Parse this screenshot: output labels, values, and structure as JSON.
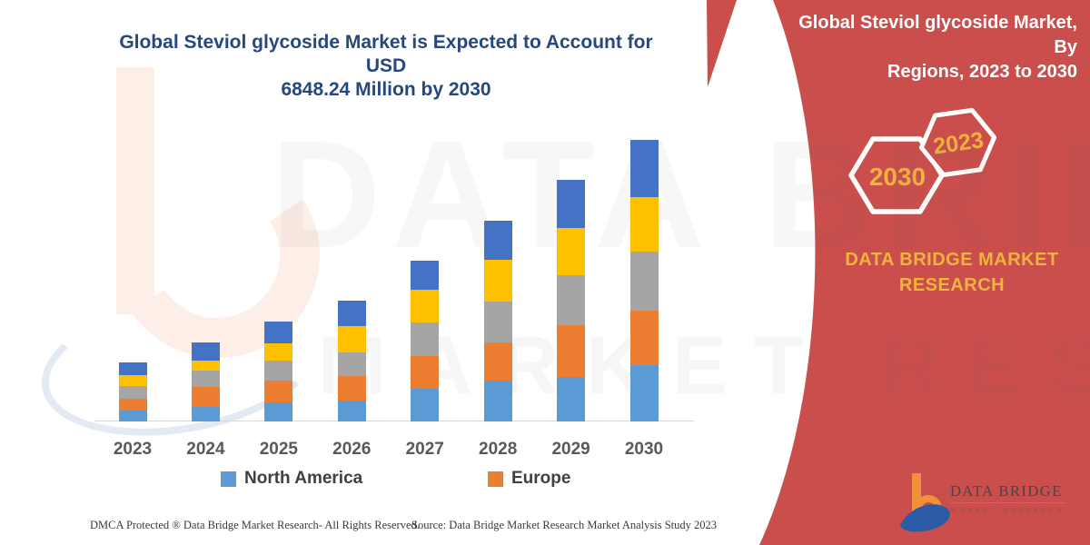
{
  "page": {
    "background": "#ffffff"
  },
  "header": {
    "title_line1": "Global Steviol glycoside Market is Expected to Account for USD",
    "title_line2": "6848.24 Million by 2030",
    "color": "#27477d"
  },
  "watermark": {
    "line1": "DATA BRIDGE",
    "line2": "MARKET RESEARCH"
  },
  "chart_data": {
    "type": "bar",
    "stacked": true,
    "title": "Global Steviol glycoside Market is Expected to Account for USD 6848.24 Million by 2030",
    "categories": [
      "2023",
      "2024",
      "2025",
      "2026",
      "2027",
      "2028",
      "2029",
      "2030"
    ],
    "series": [
      {
        "name": "North America",
        "color": "#5b9bd5",
        "values": [
          265,
          353,
          464,
          508,
          795,
          994,
          1082,
          1370
        ]
      },
      {
        "name": "Europe",
        "color": "#ed7d31",
        "values": [
          287,
          486,
          530,
          596,
          795,
          928,
          1259,
          1325
        ]
      },
      {
        "name": "(unlabeled series 3)",
        "color": "#a5a5a5",
        "values": [
          309,
          398,
          486,
          574,
          817,
          994,
          1215,
          1436
        ]
      },
      {
        "name": "(unlabeled series 4)",
        "color": "#ffc000",
        "values": [
          265,
          243,
          420,
          641,
          795,
          1016,
          1149,
          1325
        ]
      },
      {
        "name": "(unlabeled series 5)",
        "color": "#4472c4",
        "values": [
          309,
          442,
          530,
          619,
          707,
          950,
          1171,
          1392
        ]
      }
    ],
    "totals_estimated": [
      1435,
      1922,
      2430,
      2938,
      3909,
      4882,
      5876,
      6848
    ],
    "units": "USD Million (segment values estimated from bar heights; only the 2030 total of 6848.24 is stated on the image)",
    "xlabel": "",
    "ylabel": "",
    "ylim": [
      0,
      6848.24
    ],
    "grid": false,
    "legend_visible": [
      "North America",
      "Europe"
    ],
    "legend_position": "bottom"
  },
  "side_panel": {
    "background": "#ca4e4b",
    "title_line1": "Global Steviol glycoside Market, By",
    "title_line2": "Regions, 2023 to 2030",
    "hexagon_large_label": "2030",
    "hexagon_small_label": "2023",
    "hexagon_label_color": "#f1b23e",
    "brand_line1": "DATA BRIDGE MARKET",
    "brand_line2": "RESEARCH",
    "brand_color": "#f1b23e"
  },
  "footer": {
    "dmca": "DMCA Protected ® Data Bridge Market Research-  All Rights Reserved.",
    "source": "Source: Data Bridge Market Research  Market Analysis Study 2023"
  },
  "logo": {
    "name": "DATA BRIDGE",
    "subtitle": "MARKET RESEARCH",
    "orange": "#f0903a",
    "blue": "#2b5aa7"
  }
}
